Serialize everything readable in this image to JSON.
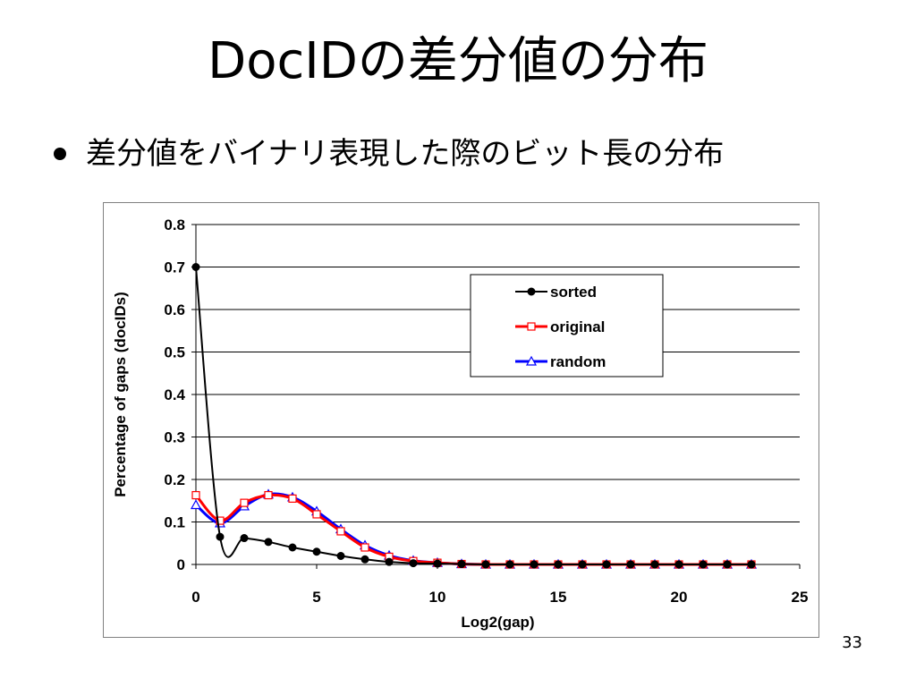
{
  "slide": {
    "title": "DocIDの差分値の分布",
    "bullet": "差分値をバイナリ表現した際のビット長の分布",
    "page_number": "33"
  },
  "chart_data": {
    "type": "line",
    "xlabel": "Log2(gap)",
    "ylabel": "Percentage of gaps (docIDs)",
    "xlim": [
      0,
      25
    ],
    "ylim": [
      0,
      0.8
    ],
    "xticks": [
      "0",
      "5",
      "10",
      "15",
      "20",
      "25"
    ],
    "yticks": [
      "0",
      "0.1",
      "0.2",
      "0.3",
      "0.4",
      "0.5",
      "0.6",
      "0.7",
      "0.8"
    ],
    "grid": "horizontal",
    "legend_position": "top-right",
    "series": [
      {
        "name": "sorted",
        "color": "#000000",
        "marker": "circle",
        "x": [
          0,
          1,
          2,
          3,
          4,
          5,
          6,
          7,
          8,
          9,
          10,
          11,
          12,
          13,
          14,
          15,
          16,
          17,
          18,
          19,
          20,
          21,
          22,
          23
        ],
        "y": [
          0.7,
          0.065,
          0.062,
          0.053,
          0.04,
          0.03,
          0.02,
          0.012,
          0.006,
          0.003,
          0.002,
          0.001,
          0,
          0,
          0,
          0,
          0,
          0,
          0,
          0,
          0,
          0,
          0,
          0
        ]
      },
      {
        "name": "original",
        "color": "#ff0000",
        "marker": "square",
        "x": [
          0,
          1,
          2,
          3,
          4,
          5,
          6,
          7,
          8,
          9,
          10,
          11,
          12,
          13,
          14,
          15,
          16,
          17,
          18,
          19,
          20,
          21,
          22,
          23
        ],
        "y": [
          0.163,
          0.103,
          0.145,
          0.163,
          0.155,
          0.118,
          0.078,
          0.04,
          0.018,
          0.008,
          0.004,
          0.001,
          0,
          0,
          0,
          0,
          0,
          0,
          0,
          0,
          0,
          0,
          0,
          0
        ]
      },
      {
        "name": "random",
        "color": "#0000ff",
        "marker": "triangle",
        "x": [
          0,
          1,
          2,
          3,
          4,
          5,
          6,
          7,
          8,
          9,
          10,
          11,
          12,
          13,
          14,
          15,
          16,
          17,
          18,
          19,
          20,
          21,
          22,
          23
        ],
        "y": [
          0.14,
          0.097,
          0.137,
          0.165,
          0.158,
          0.125,
          0.083,
          0.045,
          0.021,
          0.009,
          0.004,
          0.001,
          0,
          0,
          0,
          0,
          0,
          0,
          0,
          0,
          0,
          0,
          0,
          0
        ]
      }
    ]
  }
}
